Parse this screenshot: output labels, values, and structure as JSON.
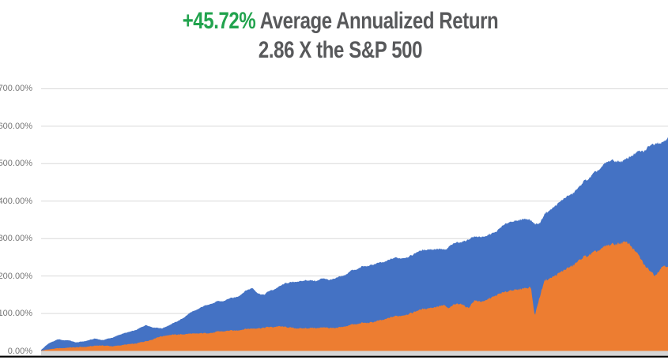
{
  "title": {
    "line1_highlight": "+45.72%",
    "line1_rest": " Average Annualized Return",
    "line2": "2.86 X the S&P 500"
  },
  "colors": {
    "highlight_green": "#22A34E",
    "title_gray": "#58595B",
    "blue_area": "#4472C4",
    "orange_area": "#ED7D31",
    "gridline": "#D9D9D9",
    "axis_strip": "#D6D6D6",
    "bottom_line": "#000000",
    "tick_gray": "#757575"
  },
  "chart_data": {
    "type": "area",
    "title": "+45.72% Average Annualized Return / 2.86 X the S&P 500",
    "xlabel": "",
    "ylabel": "",
    "ylim": [
      0,
      700
    ],
    "y_tick_step": 100,
    "y_ticks": [
      "0.00%",
      "100.00%",
      "200.00%",
      "300.00%",
      "400.00%",
      "500.00%",
      "600.00%",
      "700.00%"
    ],
    "grid": true,
    "legend_position": "none",
    "x_axis_labels": "none (timeline, no visible date labels)",
    "value_unit": "cumulative return %",
    "series": [
      {
        "name": "blue_area (strategy cumulative return)",
        "color": "#4472C4",
        "points": [
          [
            0.0,
            3
          ],
          [
            0.0126,
            20
          ],
          [
            0.0277,
            30
          ],
          [
            0.044,
            28
          ],
          [
            0.0566,
            23
          ],
          [
            0.0692,
            27
          ],
          [
            0.0855,
            32
          ],
          [
            0.0981,
            28
          ],
          [
            0.1132,
            36
          ],
          [
            0.1283,
            44
          ],
          [
            0.1409,
            50
          ],
          [
            0.1535,
            58
          ],
          [
            0.1673,
            70
          ],
          [
            0.1799,
            62
          ],
          [
            0.1925,
            59
          ],
          [
            0.205,
            68
          ],
          [
            0.2164,
            78
          ],
          [
            0.2264,
            88
          ],
          [
            0.239,
            103
          ],
          [
            0.2516,
            114
          ],
          [
            0.2642,
            125
          ],
          [
            0.2767,
            130
          ],
          [
            0.2893,
            132
          ],
          [
            0.3019,
            140
          ],
          [
            0.3145,
            147
          ],
          [
            0.327,
            160
          ],
          [
            0.3371,
            168
          ],
          [
            0.3459,
            154
          ],
          [
            0.356,
            151
          ],
          [
            0.3648,
            161
          ],
          [
            0.3774,
            170
          ],
          [
            0.3899,
            180
          ],
          [
            0.405,
            186
          ],
          [
            0.4214,
            188
          ],
          [
            0.434,
            186
          ],
          [
            0.4465,
            193
          ],
          [
            0.4629,
            192
          ],
          [
            0.478,
            198
          ],
          [
            0.4906,
            209
          ],
          [
            0.5057,
            221
          ],
          [
            0.522,
            230
          ],
          [
            0.5384,
            237
          ],
          [
            0.5535,
            242
          ],
          [
            0.5686,
            248
          ],
          [
            0.5849,
            254
          ],
          [
            0.6013,
            263
          ],
          [
            0.6163,
            268
          ],
          [
            0.6314,
            272
          ],
          [
            0.6478,
            274
          ],
          [
            0.6642,
            288
          ],
          [
            0.6792,
            297
          ],
          [
            0.6943,
            303
          ],
          [
            0.7107,
            308
          ],
          [
            0.727,
            320
          ],
          [
            0.7421,
            342
          ],
          [
            0.761,
            350
          ],
          [
            0.7774,
            352
          ],
          [
            0.7874,
            336
          ],
          [
            0.7962,
            346
          ],
          [
            0.805,
            368
          ],
          [
            0.8201,
            392
          ],
          [
            0.8327,
            408
          ],
          [
            0.8453,
            422
          ],
          [
            0.8579,
            436
          ],
          [
            0.8704,
            458
          ],
          [
            0.883,
            477
          ],
          [
            0.8956,
            492
          ],
          [
            0.9082,
            503
          ],
          [
            0.9208,
            508
          ],
          [
            0.9333,
            513
          ],
          [
            0.9459,
            523
          ],
          [
            0.9585,
            534
          ],
          [
            0.9711,
            546
          ],
          [
            0.9811,
            558
          ],
          [
            0.9887,
            549
          ],
          [
            1.0,
            572
          ]
        ]
      },
      {
        "name": "orange_area (S&P 500 cumulative return)",
        "color": "#ED7D31",
        "points": [
          [
            0.0,
            1
          ],
          [
            0.0189,
            5
          ],
          [
            0.0377,
            8
          ],
          [
            0.0566,
            10
          ],
          [
            0.0755,
            12
          ],
          [
            0.0943,
            14
          ],
          [
            0.1132,
            13
          ],
          [
            0.1258,
            14
          ],
          [
            0.1384,
            17
          ],
          [
            0.1509,
            20
          ],
          [
            0.1635,
            25
          ],
          [
            0.1761,
            30
          ],
          [
            0.1887,
            37
          ],
          [
            0.2013,
            41
          ],
          [
            0.2201,
            44
          ],
          [
            0.239,
            46
          ],
          [
            0.2579,
            48
          ],
          [
            0.2767,
            50
          ],
          [
            0.2956,
            53
          ],
          [
            0.3145,
            56
          ],
          [
            0.327,
            58
          ],
          [
            0.3396,
            60
          ],
          [
            0.3522,
            62
          ],
          [
            0.3648,
            64
          ],
          [
            0.3774,
            66
          ],
          [
            0.3925,
            63
          ],
          [
            0.4088,
            61
          ],
          [
            0.4277,
            60
          ],
          [
            0.4403,
            62
          ],
          [
            0.4553,
            63
          ],
          [
            0.4717,
            61
          ],
          [
            0.4906,
            68
          ],
          [
            0.5094,
            74
          ],
          [
            0.5283,
            78
          ],
          [
            0.5472,
            85
          ],
          [
            0.566,
            92
          ],
          [
            0.5849,
            100
          ],
          [
            0.6038,
            108
          ],
          [
            0.6189,
            113
          ],
          [
            0.6314,
            118
          ],
          [
            0.644,
            124
          ],
          [
            0.6503,
            112
          ],
          [
            0.6579,
            121
          ],
          [
            0.6692,
            127
          ],
          [
            0.6818,
            115
          ],
          [
            0.6918,
            133
          ],
          [
            0.7044,
            132
          ],
          [
            0.717,
            142
          ],
          [
            0.7321,
            153
          ],
          [
            0.7484,
            162
          ],
          [
            0.7673,
            166
          ],
          [
            0.7811,
            170
          ],
          [
            0.7874,
            92
          ],
          [
            0.7937,
            136
          ],
          [
            0.8025,
            186
          ],
          [
            0.8176,
            202
          ],
          [
            0.8365,
            220
          ],
          [
            0.8553,
            238
          ],
          [
            0.8742,
            258
          ],
          [
            0.8931,
            272
          ],
          [
            0.9119,
            282
          ],
          [
            0.9283,
            293
          ],
          [
            0.9371,
            288
          ],
          [
            0.9472,
            266
          ],
          [
            0.9585,
            241
          ],
          [
            0.9686,
            217
          ],
          [
            0.9787,
            203
          ],
          [
            0.985,
            211
          ],
          [
            0.9938,
            228
          ],
          [
            1.0,
            226
          ]
        ]
      }
    ]
  }
}
